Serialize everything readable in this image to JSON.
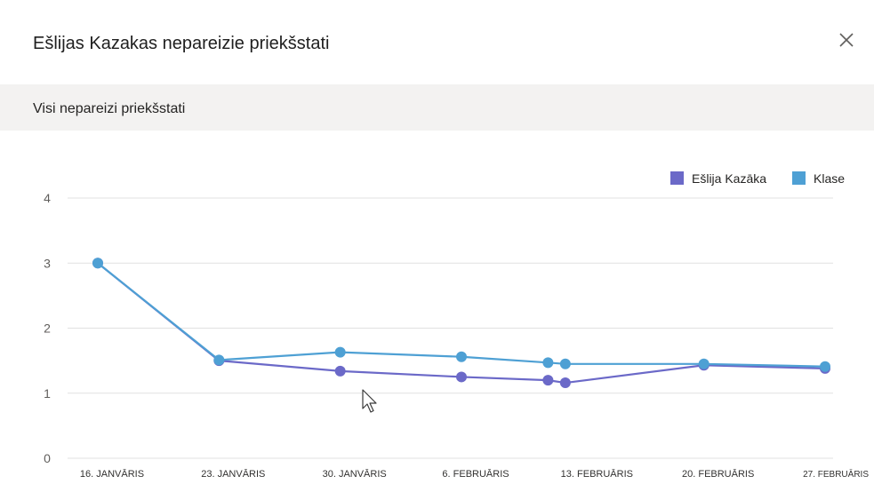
{
  "dialog": {
    "title": "Ešlijas Kazakas nepareizie priekšstati",
    "close_icon": "close-icon",
    "section_title": "Visi nepareizi priekšstati"
  },
  "colors": {
    "student": "#6b69c8",
    "class": "#4ea0d4",
    "grid": "#e1e1e1",
    "axis_text": "#605e5c",
    "section_bg": "#f3f2f1"
  },
  "chart_data": {
    "type": "line",
    "title": "",
    "xlabel": "",
    "ylabel": "",
    "ylim": [
      0,
      4
    ],
    "yticks": [
      "0",
      "1",
      "2",
      "3",
      "4"
    ],
    "x_labels": [
      "16. JANVĀRIS",
      "23. JANVĀRIS",
      "30. JANVĀRIS",
      "6. FEBRUĀRIS",
      "13. FEBRUĀRIS",
      "20. FEBRUĀRIS",
      "27. FEBRUĀRIS"
    ],
    "x_dates": [
      "2024-01-16",
      "2024-01-23",
      "2024-01-30",
      "2024-02-06",
      "2024-02-13",
      "2024-02-20",
      "2024-02-27"
    ],
    "grid": true,
    "legend_position": "top-right",
    "series": [
      {
        "name": "Ešlija Kazāka",
        "color": "#6b69c8",
        "points": [
          {
            "x": "2024-01-16",
            "y": 3.0
          },
          {
            "x": "2024-01-23",
            "y": 1.5
          },
          {
            "x": "2024-01-30",
            "y": 1.34
          },
          {
            "x": "2024-02-06",
            "y": 1.25
          },
          {
            "x": "2024-02-11",
            "y": 1.2
          },
          {
            "x": "2024-02-12",
            "y": 1.16
          },
          {
            "x": "2024-02-20",
            "y": 1.43
          },
          {
            "x": "2024-02-27",
            "y": 1.38
          }
        ]
      },
      {
        "name": "Klase",
        "color": "#4ea0d4",
        "points": [
          {
            "x": "2024-01-16",
            "y": 3.0
          },
          {
            "x": "2024-01-23",
            "y": 1.51
          },
          {
            "x": "2024-01-30",
            "y": 1.63
          },
          {
            "x": "2024-02-06",
            "y": 1.56
          },
          {
            "x": "2024-02-11",
            "y": 1.47
          },
          {
            "x": "2024-02-12",
            "y": 1.45
          },
          {
            "x": "2024-02-20",
            "y": 1.45
          },
          {
            "x": "2024-02-27",
            "y": 1.41
          }
        ]
      }
    ]
  }
}
